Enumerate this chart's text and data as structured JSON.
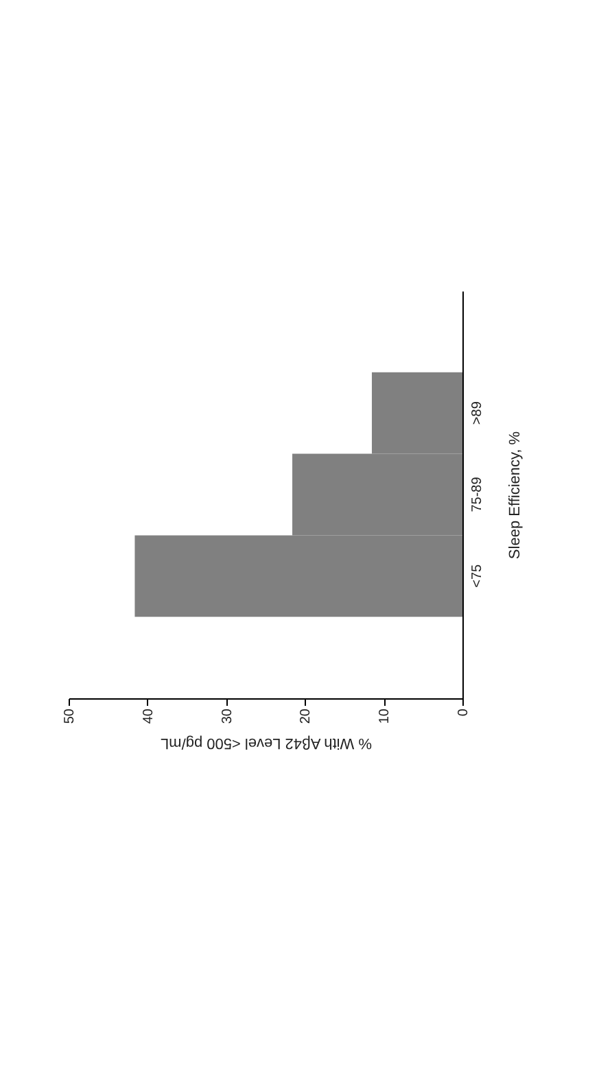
{
  "chart_data": {
    "type": "bar",
    "orientation": "horizontal",
    "categories": [
      ">89",
      "75-89",
      "<75"
    ],
    "values": [
      11.5,
      21.6,
      41.6
    ],
    "color": "#808080",
    "xlim": [
      50,
      0
    ],
    "xticks": [
      50,
      40,
      30,
      20,
      10,
      0
    ],
    "xlabel": "% With Aβ42 Level <500 pg/mL",
    "ylabel": "Sleep Efficiency, %",
    "grid": false
  }
}
